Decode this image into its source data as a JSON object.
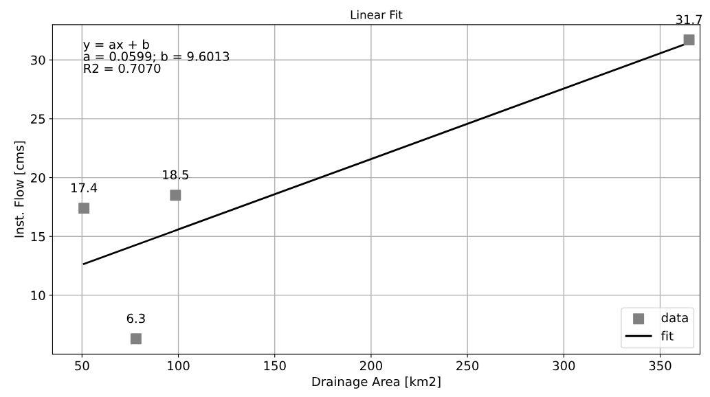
{
  "chart_data": {
    "type": "scatter",
    "title": "Linear Fit",
    "xlabel": "Drainage Area [km2]",
    "ylabel": "Inst. Flow [cms]",
    "series": [
      {
        "name": "data",
        "color": "#808080",
        "marker": "square",
        "x": [
          51,
          78,
          98.5,
          365
        ],
        "values": [
          17.4,
          6.3,
          18.5,
          31.7
        ],
        "value_labels": [
          "17.4",
          "6.3",
          "18.5",
          "31.7"
        ]
      },
      {
        "name": "fit",
        "type": "line",
        "color": "#000000",
        "marker": "none",
        "line_style": "solid",
        "x": [
          51,
          365
        ],
        "values": [
          12.66,
          31.46
        ]
      }
    ],
    "annotations": [
      "y = ax + b\na = 0.0599; b = 9.6013\nR2 = 0.7070"
    ],
    "xlim": [
      34.7,
      370.7
    ],
    "xticks": [
      50,
      100,
      150,
      200,
      250,
      300,
      350
    ],
    "ylim": [
      5.0,
      33.0
    ],
    "yticks": [
      10,
      15,
      20,
      25,
      30
    ],
    "grid": true,
    "legend": "lower right"
  }
}
